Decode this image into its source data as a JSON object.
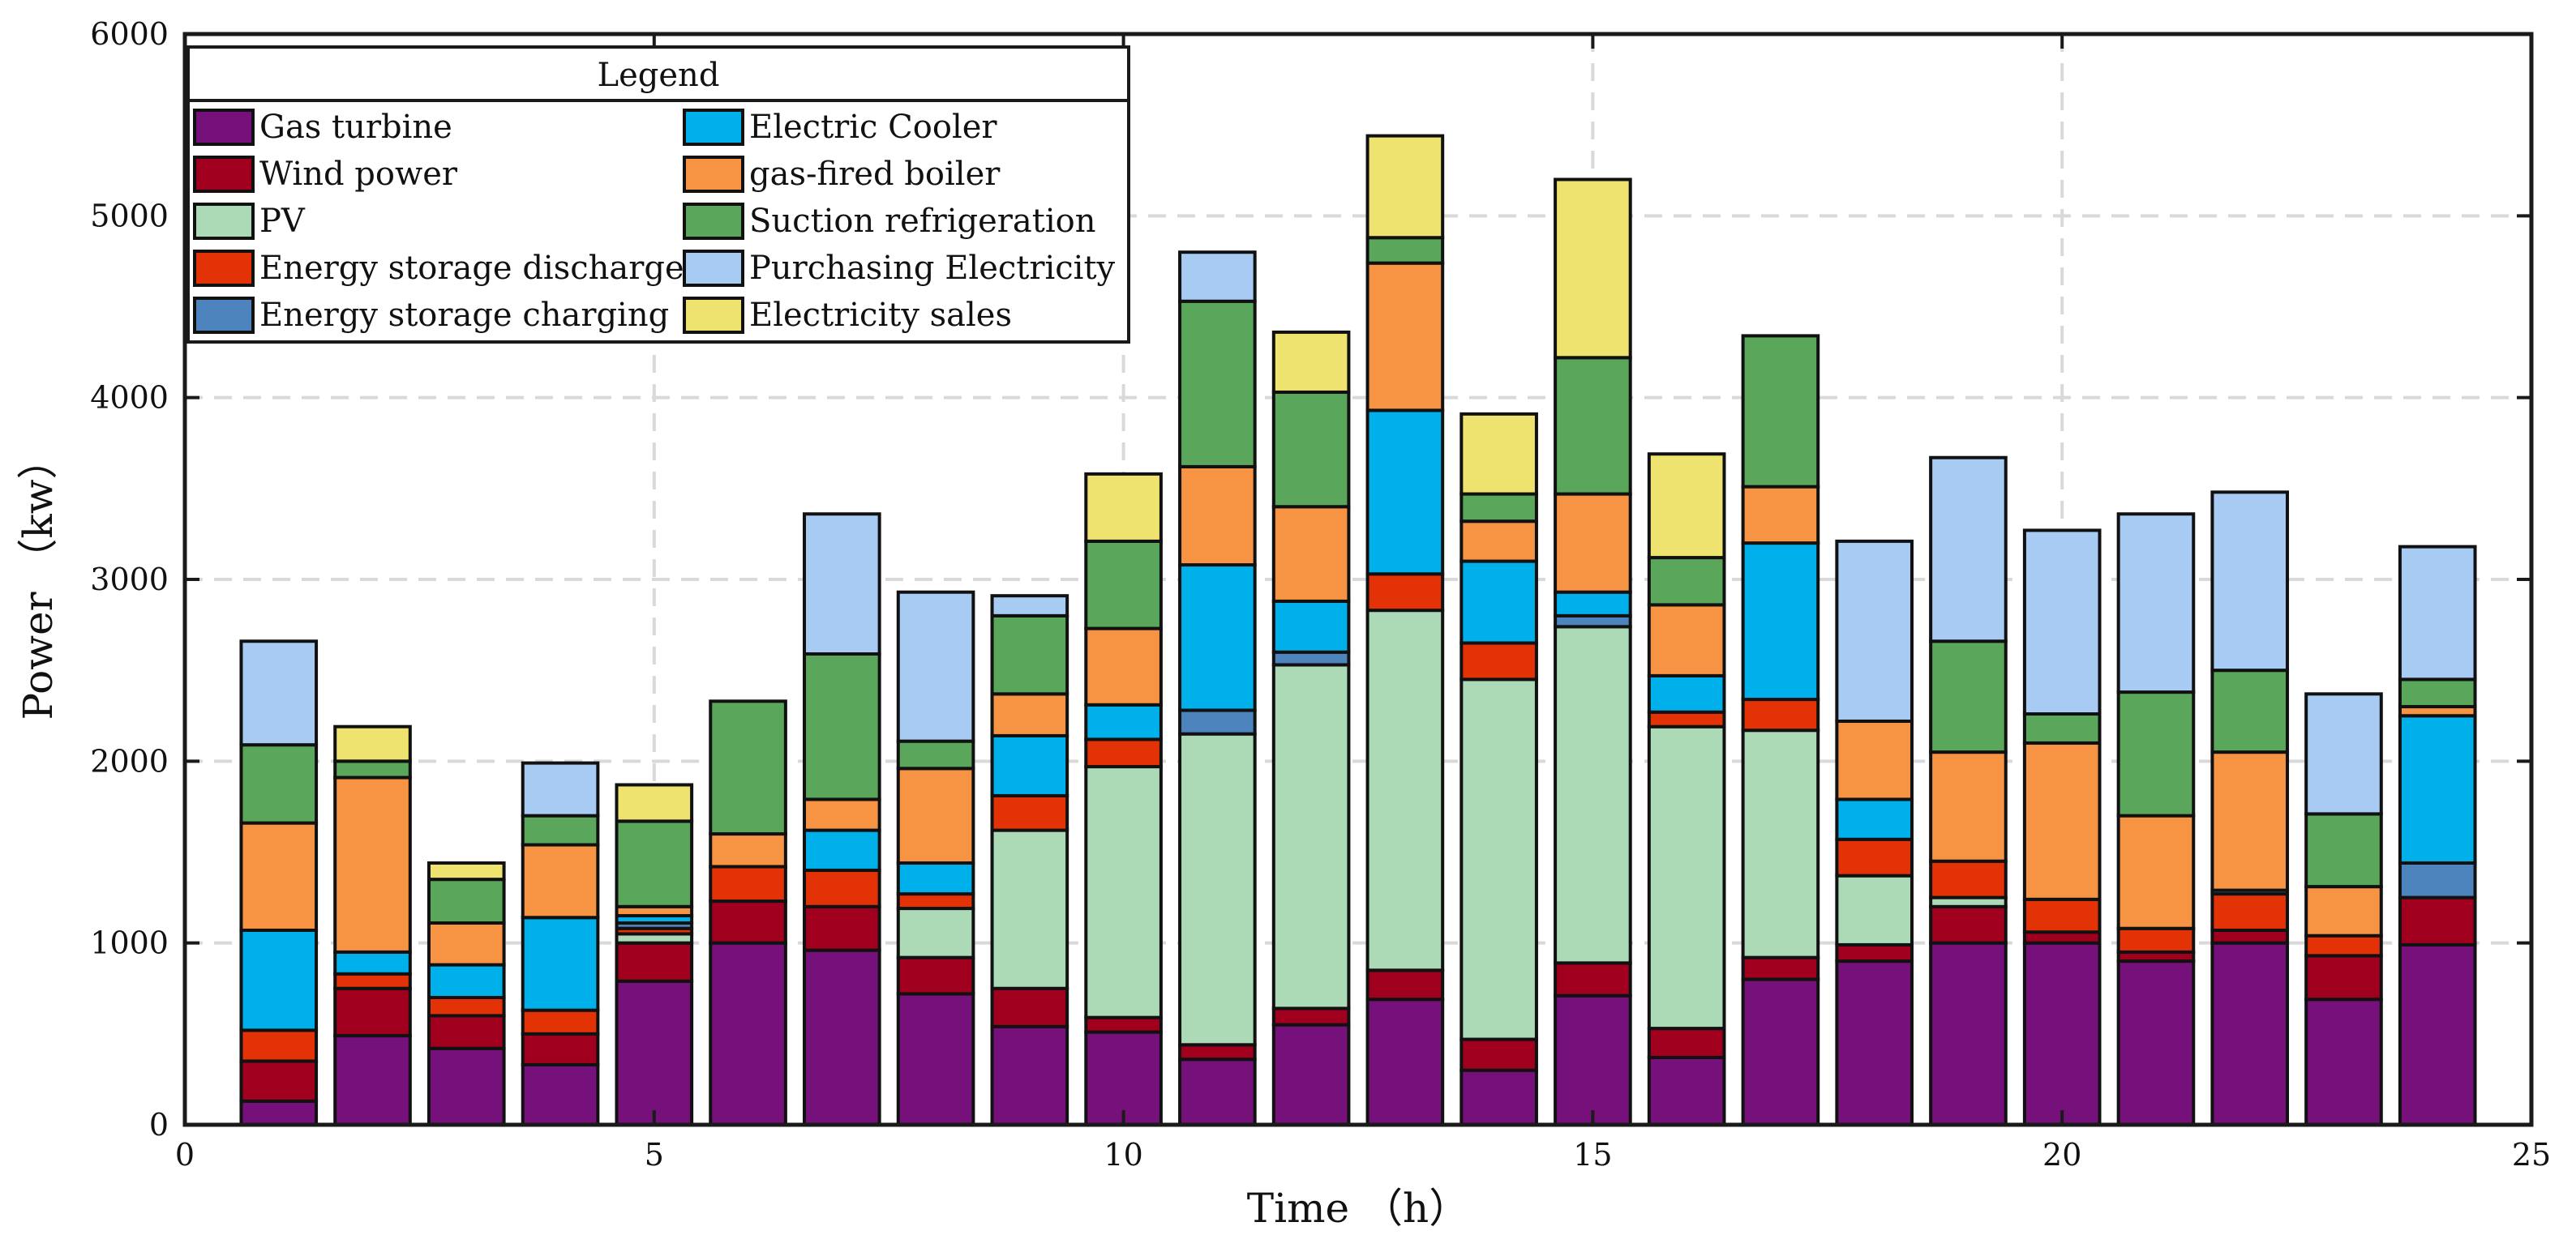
{
  "chart_data": {
    "type": "bar",
    "stacked": true,
    "xlabel": "Time （h）",
    "ylabel": "Power （kw）",
    "xlim": [
      0,
      25
    ],
    "ylim": [
      0,
      6000
    ],
    "xticks": [
      0,
      5,
      10,
      15,
      20,
      25
    ],
    "yticks": [
      0,
      1000,
      2000,
      3000,
      4000,
      5000,
      6000
    ],
    "grid": true,
    "legend_title": "Legend",
    "legend_position": "top-left",
    "categories": [
      1,
      2,
      3,
      4,
      5,
      6,
      7,
      8,
      9,
      10,
      11,
      12,
      13,
      14,
      15,
      16,
      17,
      18,
      19,
      20,
      21,
      22,
      23,
      24
    ],
    "series": [
      {
        "name": "Gas turbine",
        "color": "#76107a",
        "values": [
          130,
          490,
          420,
          330,
          790,
          1000,
          960,
          720,
          540,
          510,
          360,
          550,
          690,
          300,
          710,
          370,
          800,
          900,
          1000,
          1000,
          900,
          1000,
          690,
          990
        ]
      },
      {
        "name": "Wind power",
        "color": "#a0001e",
        "values": [
          220,
          260,
          180,
          170,
          210,
          230,
          240,
          200,
          210,
          80,
          80,
          90,
          160,
          170,
          180,
          160,
          120,
          90,
          200,
          60,
          50,
          70,
          240,
          260
        ]
      },
      {
        "name": "PV",
        "color": "#acd9b6",
        "values": [
          0,
          0,
          0,
          0,
          50,
          0,
          0,
          270,
          870,
          1380,
          1710,
          1890,
          1980,
          1980,
          1850,
          1660,
          1250,
          380,
          50,
          0,
          0,
          0,
          0,
          0
        ]
      },
      {
        "name": "Energy storage discharge",
        "color": "#e33206",
        "values": [
          170,
          80,
          100,
          130,
          30,
          190,
          200,
          80,
          190,
          150,
          0,
          0,
          200,
          200,
          0,
          80,
          170,
          200,
          200,
          180,
          130,
          200,
          110,
          0
        ]
      },
      {
        "name": "Energy storage charging",
        "color": "#4e84bd",
        "values": [
          0,
          0,
          0,
          0,
          30,
          0,
          0,
          0,
          0,
          0,
          130,
          70,
          0,
          0,
          60,
          0,
          0,
          0,
          0,
          0,
          0,
          20,
          0,
          190
        ]
      },
      {
        "name": "Electric Cooler",
        "color": "#00b0eb",
        "values": [
          550,
          120,
          180,
          510,
          40,
          0,
          220,
          170,
          330,
          190,
          800,
          280,
          900,
          450,
          130,
          200,
          860,
          220,
          0,
          0,
          0,
          0,
          0,
          810
        ]
      },
      {
        "name": "gas-fired boiler",
        "color": "#f79443",
        "values": [
          590,
          960,
          230,
          400,
          50,
          180,
          170,
          520,
          230,
          420,
          540,
          520,
          810,
          220,
          540,
          390,
          310,
          430,
          600,
          860,
          620,
          760,
          270,
          50
        ]
      },
      {
        "name": "Suction refrigeration",
        "color": "#5aa65a",
        "values": [
          430,
          90,
          240,
          160,
          470,
          730,
          800,
          150,
          430,
          480,
          910,
          630,
          140,
          150,
          750,
          260,
          830,
          0,
          610,
          160,
          680,
          450,
          400,
          150
        ]
      },
      {
        "name": "Purchasing Electricity",
        "color": "#a8cbf3",
        "values": [
          570,
          0,
          0,
          290,
          0,
          0,
          770,
          820,
          110,
          0,
          270,
          0,
          0,
          0,
          0,
          0,
          0,
          990,
          1010,
          1010,
          980,
          980,
          660,
          730
        ]
      },
      {
        "name": "Electricity sales",
        "color": "#efe36f",
        "values": [
          0,
          190,
          90,
          0,
          200,
          0,
          0,
          0,
          0,
          370,
          0,
          330,
          560,
          440,
          980,
          570,
          0,
          0,
          0,
          0,
          0,
          0,
          0,
          0
        ]
      }
    ]
  }
}
